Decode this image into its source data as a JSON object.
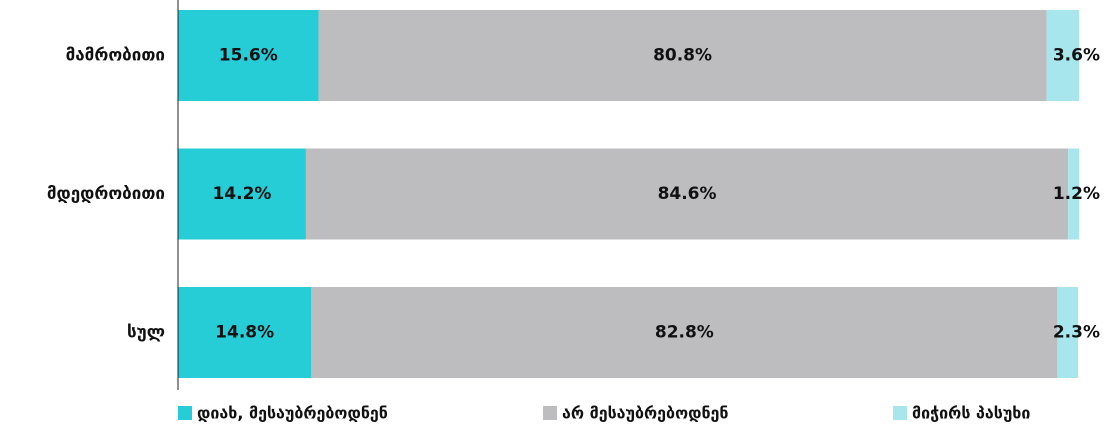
{
  "chart_data": {
    "type": "stacked_barh",
    "categories": [
      "მამრობითი",
      "მდედრობითი",
      "სულ"
    ],
    "xlim": [
      0,
      100
    ],
    "series": [
      {
        "name": "დიახ, მესაუბრებოდნენ",
        "color": "#26cdd6",
        "values": [
          15.6,
          14.2,
          14.8
        ],
        "value_labels": [
          "15.6%",
          "14.2%",
          "14.8%"
        ]
      },
      {
        "name": "არ მესაუბრებოდნენ",
        "color": "#bdbdc0",
        "values": [
          80.8,
          84.6,
          82.8
        ],
        "value_labels": [
          "80.8%",
          "84.6%",
          "82.8%"
        ]
      },
      {
        "name": "მიჭირს პასუხი",
        "color": "#a8e6ee",
        "values": [
          3.6,
          1.2,
          2.3
        ],
        "value_labels": [
          "3.6%",
          "1.2%",
          "2.3%"
        ]
      }
    ],
    "legend": "bottom"
  }
}
